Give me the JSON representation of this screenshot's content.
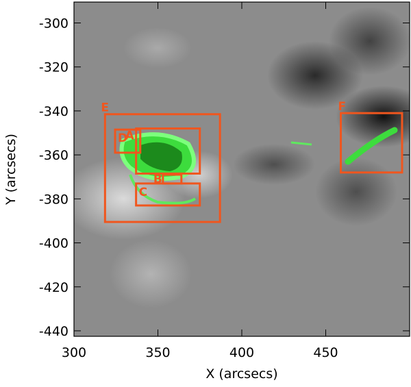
{
  "chart_data": {
    "type": "image",
    "x_label": "X (arcsecs)",
    "y_label": "Y (arcsecs)",
    "xlim": [
      300,
      500
    ],
    "ylim": [
      -442.5,
      -290.5
    ],
    "xticks": [
      300,
      350,
      400,
      450
    ],
    "yticks": [
      -300,
      -320,
      -340,
      -360,
      -380,
      -400,
      -420,
      -440
    ],
    "box_color": "#f0561e",
    "boxes": [
      {
        "label": "E",
        "x": [
          318.5,
          387
        ],
        "y": [
          -341.5,
          -390.5
        ]
      },
      {
        "label": "D",
        "x": [
          324.5,
          339.5
        ],
        "y": [
          -348.5,
          -359
        ]
      },
      {
        "label": "A",
        "x": [
          337,
          375
        ],
        "y": [
          -348,
          -368.5
        ]
      },
      {
        "label": "B",
        "x": [
          353,
          364
        ],
        "y": [
          -369,
          -373
        ]
      },
      {
        "label": "C",
        "x": [
          337,
          375
        ],
        "y": [
          -373,
          -383
        ]
      },
      {
        "label": "F",
        "x": [
          459,
          495.5
        ],
        "y": [
          -341,
          -368
        ]
      }
    ]
  }
}
